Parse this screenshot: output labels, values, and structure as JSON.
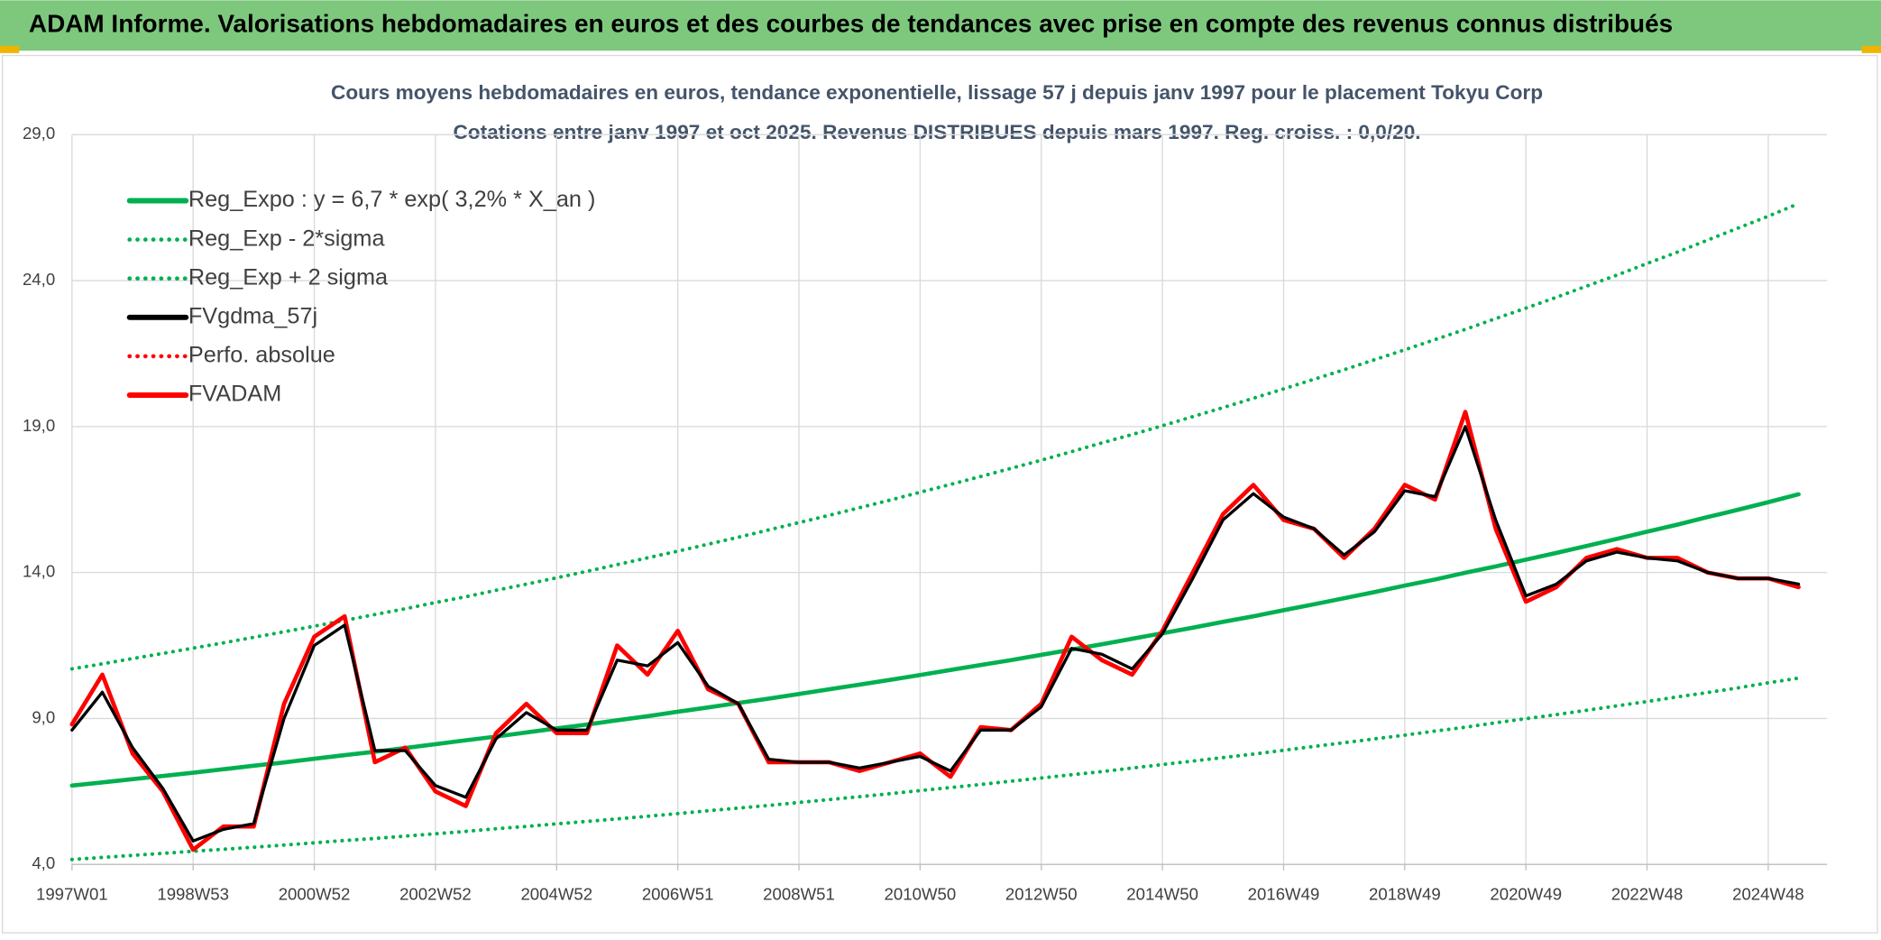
{
  "header": {
    "title": "ADAM Informe. Valorisations hebdomadaires en euros et des courbes de tendances avec prise en compte des revenus connus distribués"
  },
  "chart_data": {
    "type": "line",
    "title": "Cours moyens hebdomadaires en euros, tendance exponentielle, lissage 57 j depuis janv 1997 pour le placement Tokyu Corp",
    "subtitle": "Cotations entre janv 1997 et oct 2025. Revenus DISTRIBUES depuis mars 1997. Reg. croiss. : 0,0/20.",
    "categories": [
      "1997W01",
      null,
      null,
      null,
      "1998W53",
      null,
      null,
      null,
      "2000W52",
      null,
      null,
      null,
      "2002W52",
      null,
      null,
      null,
      "2004W52",
      null,
      null,
      null,
      "2006W51",
      null,
      null,
      null,
      "2008W51",
      null,
      null,
      null,
      "2010W50",
      null,
      null,
      null,
      "2012W50",
      null,
      null,
      null,
      "2014W50",
      null,
      null,
      null,
      "2016W49",
      null,
      null,
      null,
      "2018W49",
      null,
      null,
      null,
      "2020W49",
      null,
      null,
      null,
      "2022W48",
      null,
      null,
      null,
      "2024W48",
      null
    ],
    "ylim": [
      4,
      29
    ],
    "yticks": [
      {
        "value": 4,
        "label": "4,0"
      },
      {
        "value": 9,
        "label": "9,0"
      },
      {
        "value": 14,
        "label": "14,0"
      },
      {
        "value": 19,
        "label": "19,0"
      },
      {
        "value": 24,
        "label": "24,0"
      },
      {
        "value": 29,
        "label": "29,0"
      }
    ],
    "grid": true,
    "legend": "upper-left",
    "series": [
      {
        "name": "Reg_Expo : y = 6,7 * exp( 3,2% *  X_an )",
        "color": "#00b050",
        "style": "solid",
        "values": [
          6.7,
          6.81,
          6.92,
          7.03,
          7.14,
          7.26,
          7.38,
          7.49,
          7.62,
          7.74,
          7.86,
          7.99,
          8.12,
          8.25,
          8.38,
          8.52,
          8.66,
          8.79,
          8.94,
          9.08,
          9.23,
          9.38,
          9.53,
          9.68,
          9.84,
          10.0,
          10.16,
          10.32,
          10.49,
          10.66,
          10.83,
          11.0,
          11.18,
          11.36,
          11.54,
          11.73,
          11.92,
          12.11,
          12.31,
          12.5,
          12.71,
          12.91,
          13.12,
          13.33,
          13.55,
          13.76,
          13.99,
          14.21,
          14.44,
          14.67,
          14.91,
          15.15,
          15.4,
          15.64,
          15.9,
          16.15,
          16.41,
          16.68
        ]
      },
      {
        "name": "Reg_Exp - 2*sigma",
        "color": "#00b050",
        "style": "dotted",
        "values": [
          4.17,
          4.24,
          4.31,
          4.38,
          4.45,
          4.52,
          4.59,
          4.66,
          4.74,
          4.82,
          4.89,
          4.97,
          5.05,
          5.13,
          5.22,
          5.3,
          5.39,
          5.47,
          5.56,
          5.65,
          5.74,
          5.84,
          5.93,
          6.02,
          6.12,
          6.22,
          6.32,
          6.42,
          6.53,
          6.63,
          6.74,
          6.85,
          6.96,
          7.07,
          7.18,
          7.3,
          7.42,
          7.54,
          7.66,
          7.78,
          7.91,
          8.04,
          8.17,
          8.3,
          8.43,
          8.57,
          8.7,
          8.85,
          8.99,
          9.13,
          9.28,
          9.43,
          9.58,
          9.74,
          9.89,
          10.05,
          10.22,
          10.38
        ]
      },
      {
        "name": "Reg_Exp + 2 sigma",
        "color": "#00b050",
        "style": "dotted",
        "values": [
          10.7,
          10.87,
          11.05,
          11.23,
          11.41,
          11.59,
          11.78,
          11.97,
          12.16,
          12.36,
          12.56,
          12.76,
          12.97,
          13.17,
          13.39,
          13.6,
          13.82,
          14.04,
          14.27,
          14.5,
          14.73,
          14.97,
          15.21,
          15.46,
          15.71,
          15.96,
          16.22,
          16.48,
          16.75,
          17.02,
          17.29,
          17.57,
          17.85,
          18.14,
          18.44,
          18.73,
          19.03,
          19.34,
          19.65,
          19.97,
          20.29,
          20.62,
          20.95,
          21.29,
          21.63,
          21.98,
          22.33,
          22.7,
          23.06,
          23.43,
          23.81,
          24.19,
          24.59,
          24.98,
          25.39,
          25.8,
          26.21,
          26.64
        ]
      },
      {
        "name": "FVgdma_57j",
        "color": "#000000",
        "style": "solid",
        "values": [
          8.6,
          9.9,
          8.0,
          6.6,
          4.8,
          5.2,
          5.4,
          9.0,
          11.5,
          12.2,
          7.9,
          7.9,
          6.7,
          6.3,
          8.3,
          9.2,
          8.6,
          8.6,
          11.0,
          10.8,
          11.6,
          10.1,
          9.5,
          7.6,
          7.5,
          7.5,
          7.3,
          7.5,
          7.7,
          7.2,
          8.6,
          8.6,
          9.4,
          11.4,
          11.2,
          10.7,
          11.9,
          13.8,
          15.8,
          16.7,
          15.9,
          15.5,
          14.6,
          15.4,
          16.8,
          16.6,
          19.0,
          15.8,
          13.2,
          13.6,
          14.4,
          14.7,
          14.5,
          14.4,
          14.0,
          13.8,
          13.8,
          13.6
        ]
      },
      {
        "name": "Perfo. absolue",
        "color": "#ff0000",
        "style": "dotted",
        "values": [
          8.8,
          10.5,
          7.8,
          6.5,
          4.5,
          5.3,
          5.3,
          9.5,
          11.8,
          12.5,
          7.5,
          8.0,
          6.5,
          6.0,
          8.5,
          9.5,
          8.5,
          8.5,
          11.5,
          10.5,
          12.0,
          10.0,
          9.5,
          7.5,
          7.5,
          7.5,
          7.2,
          7.5,
          7.8,
          7.0,
          8.7,
          8.6,
          9.5,
          11.8,
          11.0,
          10.5,
          12.0,
          14.0,
          16.0,
          17.0,
          15.8,
          15.5,
          14.5,
          15.5,
          17.0,
          16.5,
          19.5,
          15.5,
          13.0,
          13.5,
          14.5,
          14.8,
          14.5,
          14.5,
          14.0,
          13.8,
          13.8,
          13.5
        ]
      },
      {
        "name": "FVADAM",
        "color": "#ff0000",
        "style": "solid",
        "values": [
          8.8,
          10.5,
          7.8,
          6.5,
          4.5,
          5.3,
          5.3,
          9.5,
          11.8,
          12.5,
          7.5,
          8.0,
          6.5,
          6.0,
          8.5,
          9.5,
          8.5,
          8.5,
          11.5,
          10.5,
          12.0,
          10.0,
          9.5,
          7.5,
          7.5,
          7.5,
          7.2,
          7.5,
          7.8,
          7.0,
          8.7,
          8.6,
          9.5,
          11.8,
          11.0,
          10.5,
          12.0,
          14.0,
          16.0,
          17.0,
          15.8,
          15.5,
          14.5,
          15.5,
          17.0,
          16.5,
          19.5,
          15.5,
          13.0,
          13.5,
          14.5,
          14.8,
          14.5,
          14.5,
          14.0,
          13.8,
          13.8,
          13.5
        ]
      }
    ]
  }
}
